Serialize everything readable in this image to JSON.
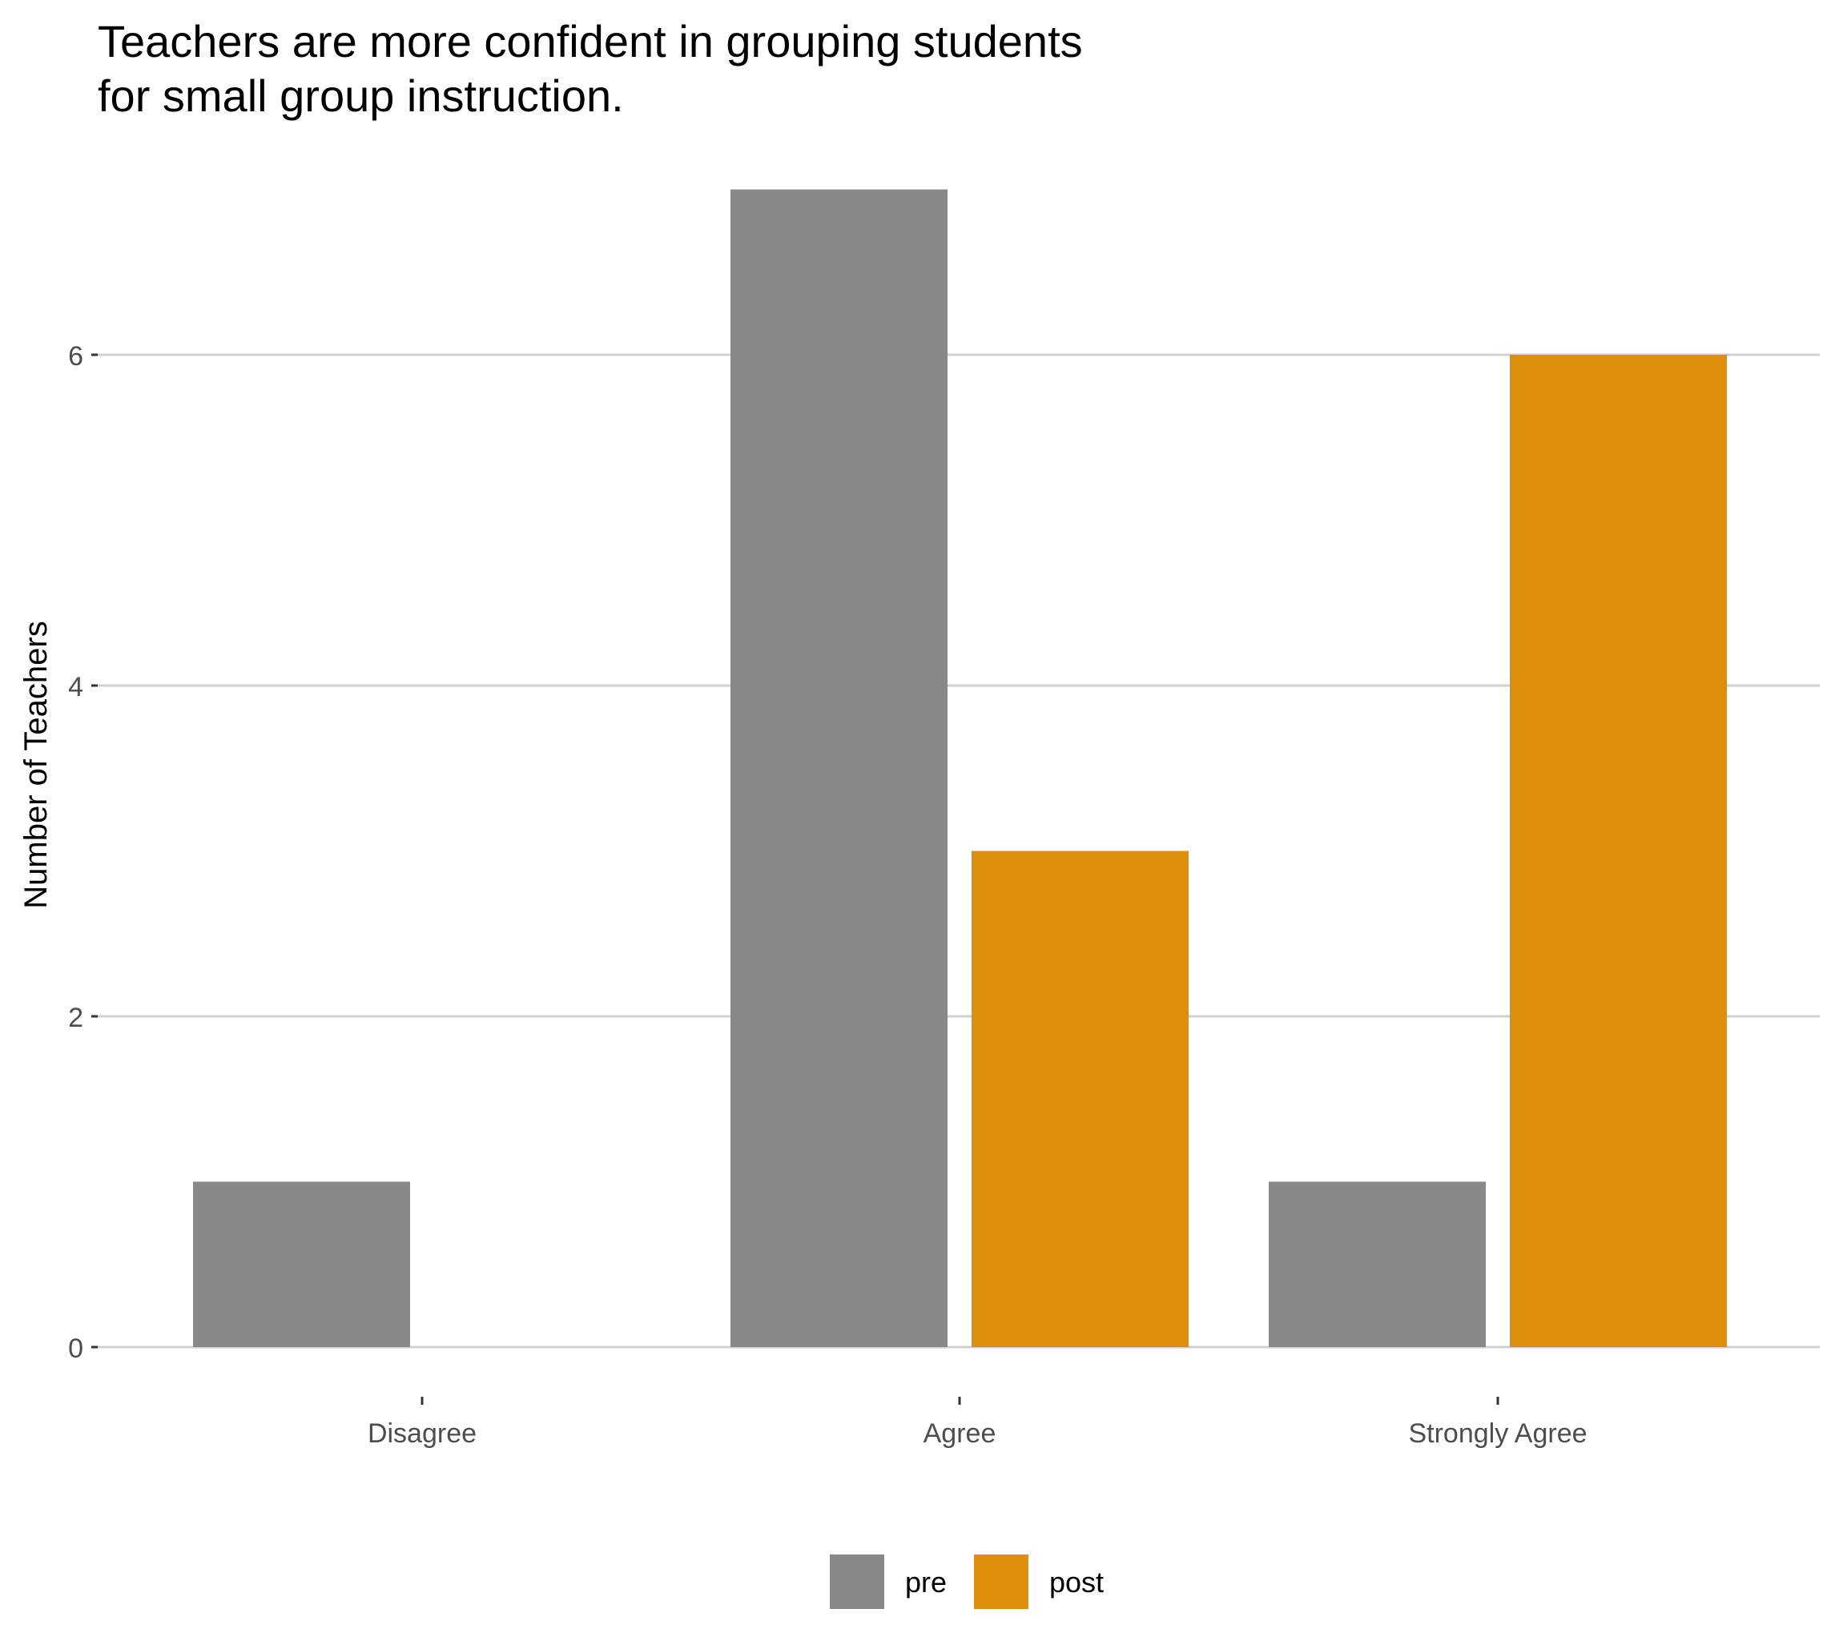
{
  "chart_data": {
    "type": "bar",
    "title": "Teachers are more confident in grouping students\nfor small group instruction.",
    "xlabel": "",
    "ylabel": "Number of Teachers",
    "categories": [
      "Disagree",
      "Agree",
      "Strongly Agree"
    ],
    "series": [
      {
        "name": "pre",
        "color": "#888888",
        "values": [
          1,
          7,
          1
        ]
      },
      {
        "name": "post",
        "color": "#DE8F0A",
        "values": [
          null,
          3,
          6
        ]
      }
    ],
    "ylim": [
      0,
      7
    ],
    "yticks": [
      0,
      2,
      4,
      6
    ],
    "grid": "horizontal",
    "legend_position": "bottom"
  }
}
